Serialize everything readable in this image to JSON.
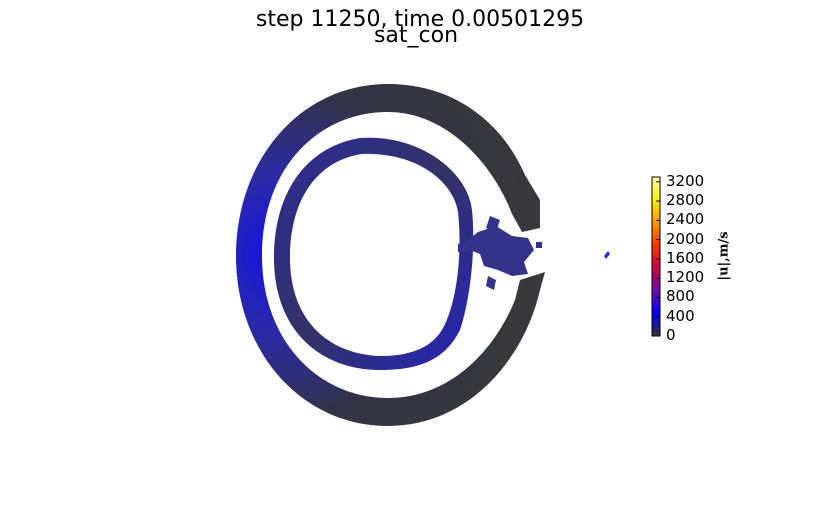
{
  "title": "step 11250, time 0.00501295",
  "subtitle": "sat_con",
  "chart_data": {
    "type": "heatmap",
    "field": "|u|",
    "colorbar": {
      "label": "|u|,m/s",
      "ticks": [
        0,
        400,
        800,
        1200,
        1600,
        2000,
        2400,
        2800,
        3200
      ],
      "range": [
        0,
        3300
      ],
      "colormap": [
        "#333333",
        "#0000ff",
        "#6a0dad",
        "#cc0044",
        "#ff3300",
        "#ff9900",
        "#ffee00",
        "#ffffaa"
      ]
    },
    "regions": [
      {
        "name": "outer ring",
        "speed_range": [
          0,
          500
        ]
      },
      {
        "name": "inner ring",
        "speed_range": [
          100,
          500
        ]
      },
      {
        "name": "breach debris",
        "speed_range": [
          100,
          400
        ]
      }
    ]
  }
}
